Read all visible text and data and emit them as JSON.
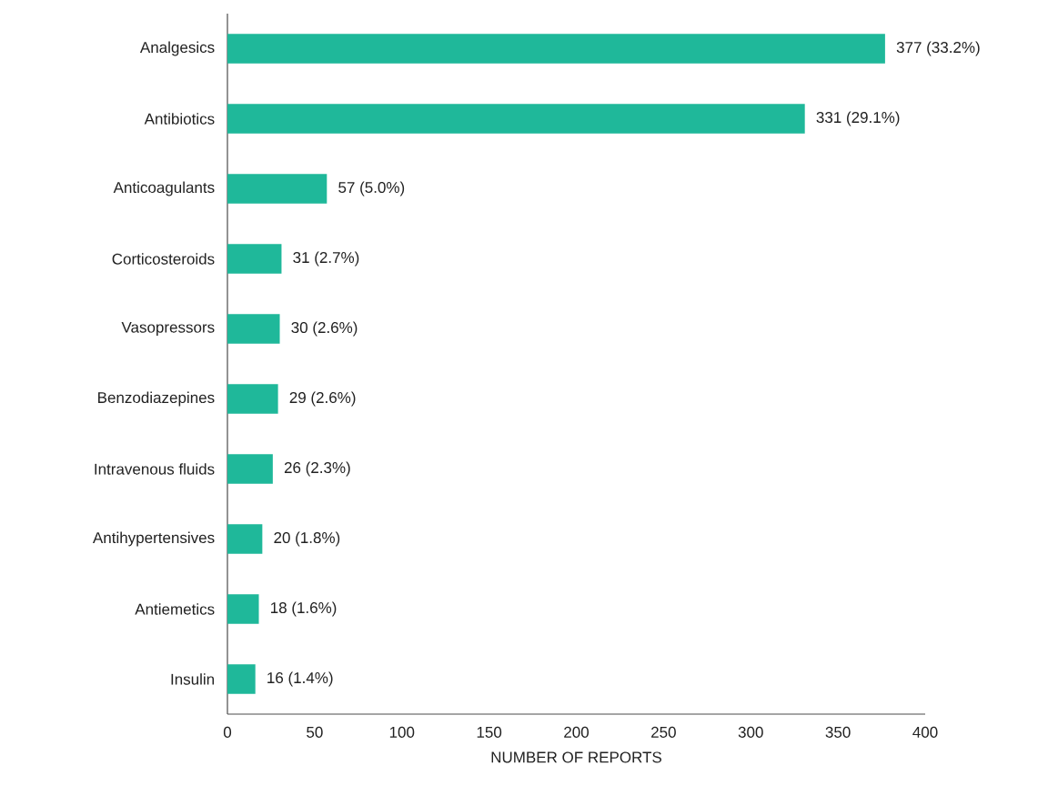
{
  "chart_data": {
    "type": "bar",
    "orientation": "horizontal",
    "xlabel": "NUMBER OF REPORTS",
    "categories": [
      "Analgesics",
      "Antibiotics",
      "Anticoagulants",
      "Corticosteroids",
      "Vasopressors",
      "Benzodiazepines",
      "Intravenous fluids",
      "Antihypertensives",
      "Antiemetics",
      "Insulin"
    ],
    "values": [
      377,
      331,
      57,
      31,
      30,
      29,
      26,
      20,
      18,
      16
    ],
    "value_labels": [
      "377 (33.2%)",
      "331 (29.1%)",
      "57 (5.0%)",
      "31 (2.7%)",
      "30 (2.6%)",
      "29 (2.6%)",
      "26 (2.3%)",
      "20 (1.8%)",
      "18 (1.6%)",
      "16 (1.4%)"
    ],
    "color": "#1fb89a",
    "xlim": [
      0,
      400
    ],
    "xticks": [
      0,
      50,
      100,
      150,
      200,
      250,
      300,
      350,
      400
    ],
    "grid": false
  }
}
